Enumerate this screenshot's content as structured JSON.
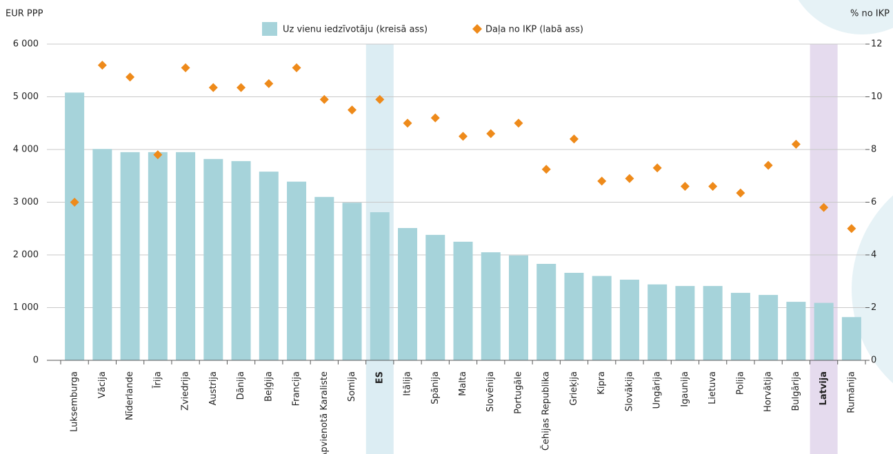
{
  "chart_data": {
    "type": "bar",
    "categories": [
      "Luksemburga",
      "Vācija",
      "Nīderlande",
      "Īrija",
      "Zviedrija",
      "Austrija",
      "Dānija",
      "Beļģija",
      "Francija",
      "Apvienotā Karaliste",
      "Somija",
      "ES",
      "Itālija",
      "Spānija",
      "Malta",
      "Slovēnija",
      "Portugāle",
      "Čehijas Republika",
      "Grieķija",
      "Kipra",
      "Slovākija",
      "Ungārija",
      "Igaunija",
      "Lietuva",
      "Polija",
      "Horvātija",
      "Bulgārija",
      "Latvija",
      "Rumānija"
    ],
    "series": [
      {
        "name": "Uz vienu iedzīvotāju (kreisā ass)",
        "type": "bar",
        "color": "#a6d3da",
        "values": [
          5080,
          4010,
          3950,
          3950,
          3950,
          3820,
          3780,
          3580,
          3390,
          3100,
          2990,
          2810,
          2510,
          2380,
          2250,
          2050,
          1990,
          1830,
          1660,
          1600,
          1530,
          1440,
          1410,
          1410,
          1280,
          1240,
          1110,
          1090,
          820
        ]
      },
      {
        "name": "Daļa no IKP (labā ass)",
        "type": "scatter",
        "axis": "y2",
        "color": "#ee8a1a",
        "values": [
          6.0,
          11.2,
          10.75,
          7.8,
          11.1,
          10.35,
          10.35,
          10.5,
          11.1,
          9.9,
          9.5,
          9.9,
          9.0,
          9.2,
          8.5,
          8.6,
          9.0,
          7.25,
          8.4,
          6.8,
          6.9,
          7.3,
          6.6,
          6.6,
          6.35,
          7.4,
          8.2,
          5.8,
          5.0
        ]
      }
    ],
    "highlights": [
      {
        "category": "ES",
        "color": "#dcedf3"
      },
      {
        "category": "Latvija",
        "color": "#e5dbee"
      }
    ],
    "y_label": "EUR PPP",
    "y2_label": "% no IKP",
    "ylim": [
      0,
      6000
    ],
    "yticks": [
      0,
      {
        "value": 1000,
        "label": "1 000"
      },
      {
        "value": 2000,
        "label": "2 000"
      },
      {
        "value": 3000,
        "label": "3 000"
      },
      {
        "value": 4000,
        "label": "4 000"
      },
      {
        "value": 5000,
        "label": "5 000"
      },
      {
        "value": 6000,
        "label": "6 000"
      }
    ],
    "y2lim": [
      0,
      12
    ],
    "y2ticks": [
      0,
      2,
      4,
      6,
      8,
      10,
      12
    ],
    "grid": true
  }
}
